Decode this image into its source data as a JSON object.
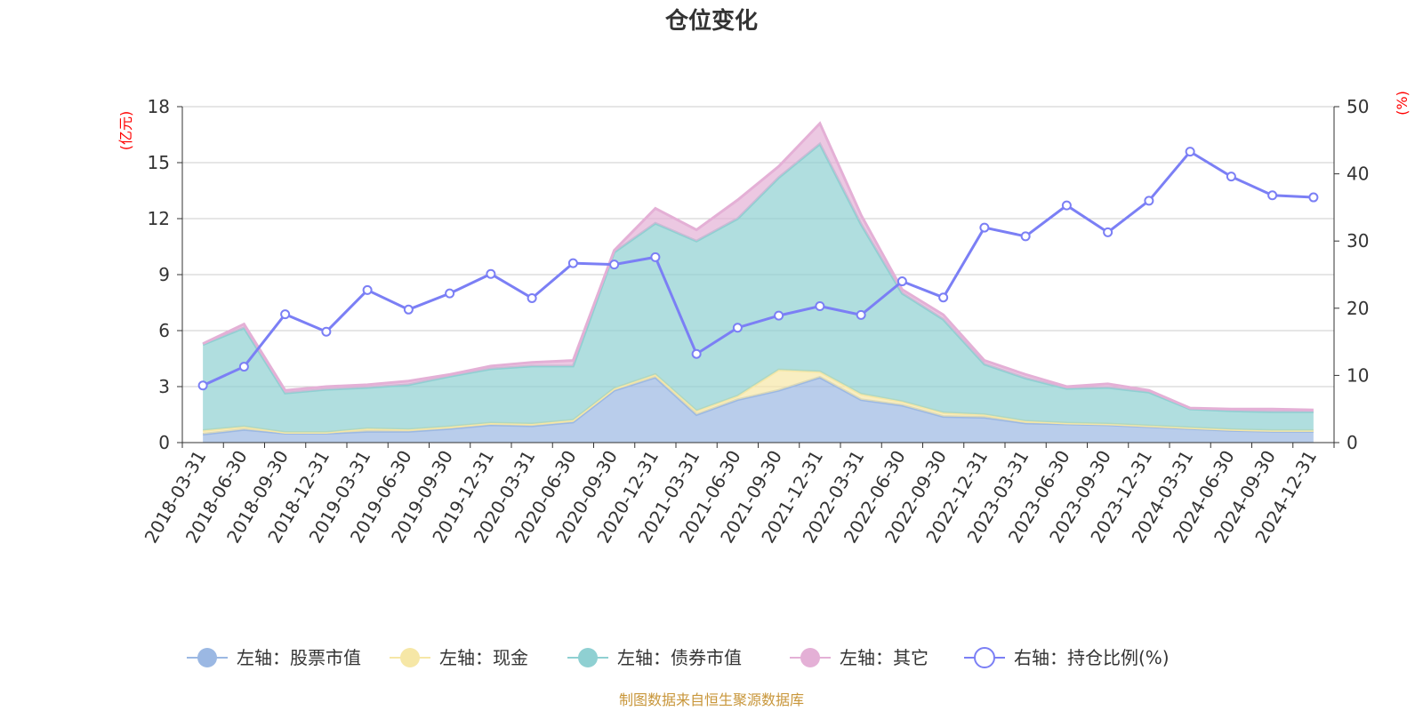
{
  "chart_data": {
    "type": "area",
    "title": "仓位变化",
    "source": "制图数据来自恒生聚源数据库",
    "left_axis": {
      "unit": "(亿元)",
      "min": 0,
      "max": 18,
      "ticks": [
        "0",
        "3",
        "6",
        "9",
        "12",
        "15",
        "18"
      ]
    },
    "right_axis": {
      "unit": "(%)",
      "min": 0,
      "max": 50,
      "ticks": [
        "0",
        "10",
        "20",
        "30",
        "40",
        "50"
      ]
    },
    "categories": [
      "2018-03-31",
      "2018-06-30",
      "2018-09-30",
      "2018-12-31",
      "2019-03-31",
      "2019-06-30",
      "2019-09-30",
      "2019-12-31",
      "2020-03-31",
      "2020-06-30",
      "2020-09-30",
      "2020-12-31",
      "2021-03-31",
      "2021-06-30",
      "2021-09-30",
      "2021-12-31",
      "2022-03-31",
      "2022-06-30",
      "2022-09-30",
      "2022-12-31",
      "2023-03-31",
      "2023-06-30",
      "2023-09-30",
      "2023-12-31",
      "2024-03-31",
      "2024-06-30",
      "2024-09-30",
      "2024-12-31"
    ],
    "series": [
      {
        "name": "左轴：股票市值",
        "axis": "left",
        "color": "#9bb8e3",
        "values": [
          0.45,
          0.7,
          0.5,
          0.5,
          0.6,
          0.6,
          0.75,
          0.95,
          0.9,
          1.1,
          2.8,
          3.5,
          1.5,
          2.3,
          2.8,
          3.5,
          2.3,
          2.0,
          1.4,
          1.35,
          1.05,
          1.0,
          0.95,
          0.85,
          0.75,
          0.65,
          0.6,
          0.6
        ]
      },
      {
        "name": "左轴：现金",
        "axis": "left",
        "color": "#f6e7a6",
        "values": [
          0.2,
          0.15,
          0.05,
          0.05,
          0.15,
          0.1,
          0.1,
          0.1,
          0.1,
          0.1,
          0.1,
          0.15,
          0.2,
          0.2,
          1.1,
          0.3,
          0.3,
          0.2,
          0.2,
          0.15,
          0.1,
          0.05,
          0.05,
          0.05,
          0.05,
          0.05,
          0.05,
          0.05
        ]
      },
      {
        "name": "左轴：债券市值",
        "axis": "left",
        "color": "#8fd0d2",
        "values": [
          4.6,
          5.3,
          2.1,
          2.3,
          2.2,
          2.4,
          2.7,
          2.9,
          3.1,
          2.9,
          7.3,
          8.1,
          9.1,
          9.5,
          10.3,
          12.2,
          9.1,
          5.8,
          5.0,
          2.7,
          2.3,
          1.85,
          1.95,
          1.8,
          1.0,
          1.0,
          1.0,
          1.0
        ]
      },
      {
        "name": "左轴：其它",
        "axis": "left",
        "color": "#e4b0d6",
        "values": [
          0.05,
          0.2,
          0.15,
          0.15,
          0.15,
          0.2,
          0.1,
          0.15,
          0.2,
          0.3,
          0.1,
          0.8,
          0.6,
          1.0,
          0.6,
          1.1,
          0.5,
          0.2,
          0.25,
          0.2,
          0.2,
          0.1,
          0.2,
          0.1,
          0.05,
          0.1,
          0.15,
          0.1
        ]
      },
      {
        "name": "右轴：持仓比例(%)",
        "axis": "right",
        "color": "#7b7ff5",
        "type": "line",
        "values": [
          8.5,
          11.3,
          19.1,
          16.5,
          22.7,
          19.8,
          22.2,
          25.1,
          21.5,
          26.7,
          26.5,
          27.6,
          13.2,
          17.1,
          18.9,
          20.3,
          19.0,
          24.0,
          21.6,
          32.0,
          30.7,
          35.3,
          31.3,
          36.0,
          43.3,
          39.6,
          36.8,
          36.5
        ]
      }
    ]
  }
}
